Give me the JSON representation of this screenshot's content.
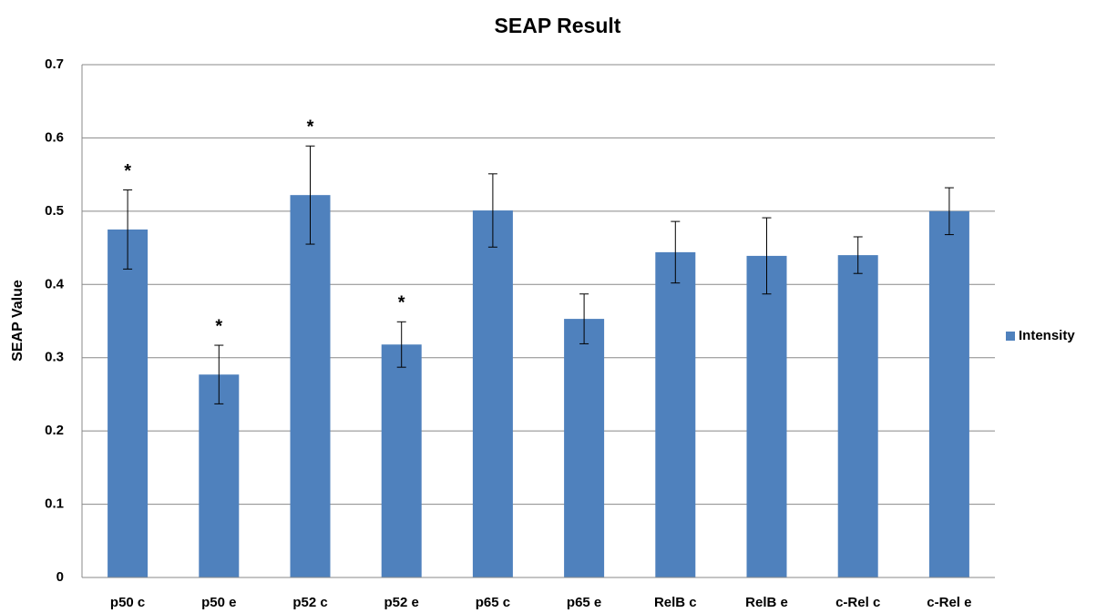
{
  "chart_data": {
    "type": "bar",
    "title": "SEAP Result",
    "y_label": "SEAP Value",
    "categories": [
      "p50 c",
      "p50 e",
      "p52 c",
      "p52 e",
      "p65 c",
      "p65 e",
      "RelB c",
      "RelB e",
      "c-Rel c",
      "c-Rel e"
    ],
    "series": [
      {
        "name": "Intensity",
        "color": "#4f81bd",
        "values": [
          0.475,
          0.277,
          0.522,
          0.318,
          0.501,
          0.353,
          0.444,
          0.439,
          0.44,
          0.5
        ],
        "errors": [
          0.054,
          0.04,
          0.067,
          0.031,
          0.05,
          0.034,
          0.042,
          0.052,
          0.025,
          0.032
        ]
      }
    ],
    "annotations": [
      {
        "text": "*",
        "category": "p50 c"
      },
      {
        "text": "*",
        "category": "p50 e"
      },
      {
        "text": "*",
        "category": "p52 c"
      },
      {
        "text": "*",
        "category": "p52 e"
      }
    ],
    "ylim": [
      0,
      0.7
    ],
    "yticks": [
      0,
      0.1,
      0.2,
      0.3,
      0.4,
      0.5,
      0.6,
      0.7
    ],
    "grid": true,
    "legend": "right"
  }
}
